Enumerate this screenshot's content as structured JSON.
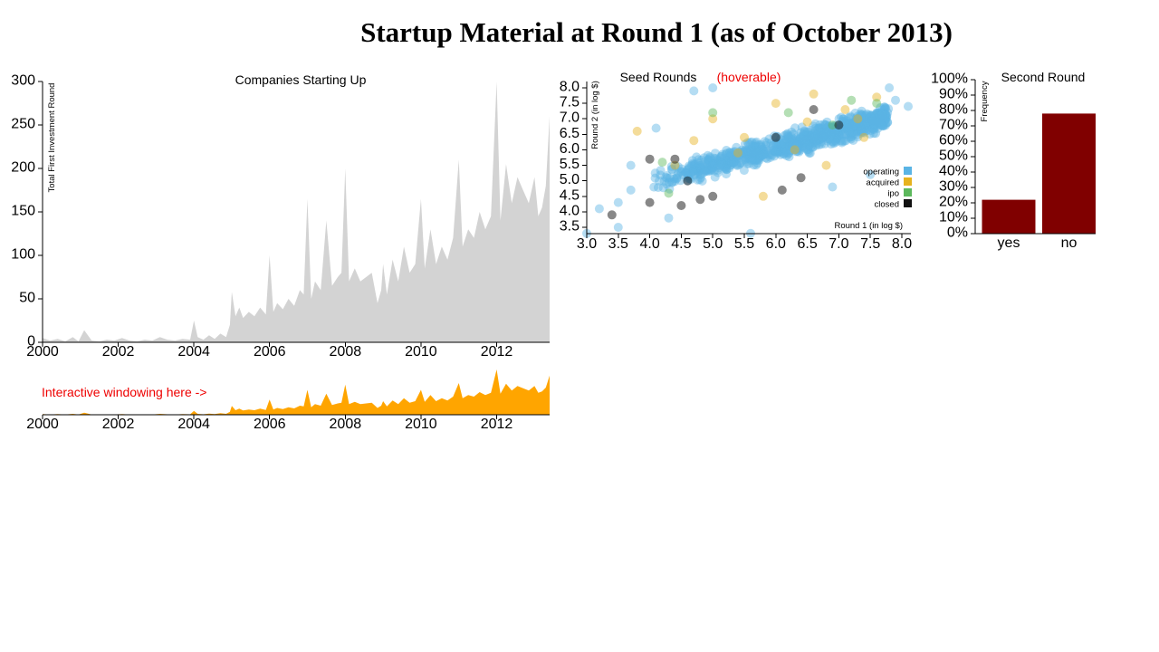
{
  "page_title": "Startup Material at Round 1 (as of October 2013)",
  "colors": {
    "area_main": "#d3d3d3",
    "area_context": "#ffa500",
    "bar": "#800000",
    "operating": "#5ab4e5",
    "acquired": "#e6b21e",
    "ipo": "#5cb85c",
    "closed": "#111111",
    "annotation": "#ee0000"
  },
  "chart_data": [
    {
      "type": "area",
      "title": "Companies Starting Up",
      "ylabel": "Total First Investment Round",
      "xlim": [
        2000,
        2013.4
      ],
      "ylim": [
        0,
        300
      ],
      "x_ticks": [
        "2000",
        "2002",
        "2004",
        "2006",
        "2008",
        "2010",
        "2012"
      ],
      "y_ticks": [
        "0",
        "50",
        "100",
        "150",
        "200",
        "250",
        "300"
      ],
      "x": [
        2000.0,
        2000.2,
        2000.4,
        2000.6,
        2000.8,
        2000.95,
        2001.1,
        2001.3,
        2001.5,
        2001.7,
        2001.9,
        2002.1,
        2002.3,
        2002.5,
        2002.7,
        2002.9,
        2003.1,
        2003.3,
        2003.5,
        2003.7,
        2003.9,
        2004.0,
        2004.1,
        2004.25,
        2004.4,
        2004.55,
        2004.7,
        2004.85,
        2004.95,
        2005.0,
        2005.1,
        2005.2,
        2005.3,
        2005.45,
        2005.6,
        2005.75,
        2005.9,
        2006.0,
        2006.1,
        2006.2,
        2006.35,
        2006.5,
        2006.65,
        2006.8,
        2006.9,
        2007.0,
        2007.1,
        2007.2,
        2007.35,
        2007.5,
        2007.65,
        2007.8,
        2007.9,
        2008.0,
        2008.1,
        2008.25,
        2008.4,
        2008.55,
        2008.7,
        2008.85,
        2008.95,
        2009.0,
        2009.1,
        2009.25,
        2009.4,
        2009.55,
        2009.7,
        2009.85,
        2010.0,
        2010.1,
        2010.25,
        2010.4,
        2010.55,
        2010.7,
        2010.85,
        2011.0,
        2011.1,
        2011.25,
        2011.4,
        2011.55,
        2011.7,
        2011.85,
        2012.0,
        2012.1,
        2012.25,
        2012.4,
        2012.55,
        2012.7,
        2012.85,
        2013.0,
        2013.1,
        2013.2,
        2013.3,
        2013.4
      ],
      "values": [
        5,
        2,
        4,
        1,
        6,
        1,
        14,
        2,
        1,
        3,
        2,
        5,
        2,
        1,
        3,
        2,
        6,
        3,
        2,
        4,
        3,
        25,
        6,
        3,
        8,
        4,
        10,
        6,
        20,
        58,
        30,
        40,
        28,
        35,
        30,
        40,
        32,
        100,
        35,
        45,
        38,
        50,
        42,
        60,
        55,
        165,
        50,
        70,
        60,
        140,
        65,
        75,
        80,
        200,
        70,
        85,
        70,
        75,
        80,
        45,
        60,
        90,
        55,
        95,
        70,
        110,
        80,
        90,
        165,
        85,
        130,
        90,
        110,
        95,
        120,
        210,
        110,
        130,
        120,
        150,
        130,
        145,
        300,
        140,
        205,
        160,
        190,
        175,
        160,
        190,
        145,
        155,
        180,
        260
      ]
    },
    {
      "type": "area",
      "title": "",
      "xlim": [
        2000,
        2013.4
      ],
      "ylim": [
        0,
        300
      ],
      "x_ticks": [
        "2000",
        "2002",
        "2004",
        "2006",
        "2008",
        "2010",
        "2012"
      ],
      "annotation": "Interactive windowing here ->"
    },
    {
      "type": "scatter",
      "title": "Seed Rounds",
      "hint": "(hoverable)",
      "xlabel": "Round 1 (in log $)",
      "ylabel": "Round 2 (in log $)",
      "xlim": [
        3.0,
        8.15
      ],
      "ylim": [
        3.3,
        8.2
      ],
      "x_ticks": [
        "3.0",
        "3.5",
        "4.0",
        "4.5",
        "5.0",
        "5.5",
        "6.0",
        "6.5",
        "7.0",
        "7.5",
        "8.0"
      ],
      "y_ticks": [
        "3.5",
        "4.0",
        "4.5",
        "5.0",
        "5.5",
        "6.0",
        "6.5",
        "7.0",
        "7.5",
        "8.0"
      ],
      "legend": [
        {
          "key": "operating",
          "label": "operating"
        },
        {
          "key": "acquired",
          "label": "acquired"
        },
        {
          "key": "ipo",
          "label": "ipo"
        },
        {
          "key": "closed",
          "label": "closed"
        }
      ],
      "legend_position": "bottom-right",
      "points": [
        [
          4.0,
          5.7,
          "closed"
        ],
        [
          4.4,
          5.7,
          "closed"
        ],
        [
          4.0,
          4.3,
          "closed"
        ],
        [
          3.4,
          3.9,
          "closed"
        ],
        [
          4.8,
          4.4,
          "closed"
        ],
        [
          4.6,
          5.0,
          "closed"
        ],
        [
          4.5,
          4.2,
          "closed"
        ],
        [
          5.0,
          4.5,
          "closed"
        ],
        [
          6.4,
          5.1,
          "closed"
        ],
        [
          6.1,
          4.7,
          "closed"
        ],
        [
          7.0,
          6.8,
          "closed"
        ],
        [
          6.6,
          7.3,
          "closed"
        ],
        [
          6.0,
          6.4,
          "closed"
        ],
        [
          3.8,
          6.6,
          "acquired"
        ],
        [
          4.4,
          5.5,
          "acquired"
        ],
        [
          5.5,
          6.4,
          "acquired"
        ],
        [
          6.6,
          7.8,
          "acquired"
        ],
        [
          7.6,
          7.7,
          "acquired"
        ],
        [
          7.1,
          7.3,
          "acquired"
        ],
        [
          6.3,
          6.0,
          "acquired"
        ],
        [
          5.0,
          7.0,
          "acquired"
        ],
        [
          6.8,
          5.5,
          "acquired"
        ],
        [
          5.8,
          4.5,
          "acquired"
        ],
        [
          4.7,
          6.3,
          "acquired"
        ],
        [
          7.3,
          7.0,
          "acquired"
        ],
        [
          6.0,
          7.5,
          "acquired"
        ],
        [
          6.5,
          6.9,
          "acquired"
        ],
        [
          7.4,
          6.4,
          "acquired"
        ],
        [
          5.4,
          5.9,
          "acquired"
        ],
        [
          4.3,
          4.6,
          "ipo"
        ],
        [
          5.0,
          7.2,
          "ipo"
        ],
        [
          7.2,
          7.6,
          "ipo"
        ],
        [
          6.9,
          6.8,
          "ipo"
        ],
        [
          4.2,
          5.6,
          "ipo"
        ],
        [
          6.2,
          7.2,
          "ipo"
        ],
        [
          7.6,
          7.5,
          "ipo"
        ],
        [
          3.2,
          4.1,
          "operating"
        ],
        [
          3.5,
          3.5,
          "operating"
        ],
        [
          3.7,
          5.5,
          "operating"
        ],
        [
          3.7,
          4.7,
          "operating"
        ],
        [
          3.5,
          4.3,
          "operating"
        ],
        [
          4.1,
          6.7,
          "operating"
        ],
        [
          4.7,
          7.9,
          "operating"
        ],
        [
          5.0,
          8.0,
          "operating"
        ],
        [
          7.8,
          8.0,
          "operating"
        ],
        [
          8.1,
          7.4,
          "operating"
        ],
        [
          7.9,
          7.6,
          "operating"
        ],
        [
          4.3,
          3.8,
          "operating"
        ],
        [
          5.6,
          3.3,
          "operating"
        ],
        [
          3.0,
          3.3,
          "operating"
        ],
        [
          6.9,
          4.8,
          "operating"
        ],
        [
          7.5,
          5.2,
          "operating"
        ]
      ]
    },
    {
      "type": "bar",
      "title": "Second Round",
      "ylabel": "Frequency",
      "categories": [
        "yes",
        "no"
      ],
      "values": [
        0.22,
        0.78
      ],
      "ylim": [
        0,
        1
      ],
      "y_ticks": [
        "0%",
        "10%",
        "20%",
        "30%",
        "40%",
        "50%",
        "60%",
        "70%",
        "80%",
        "90%",
        "100%"
      ]
    }
  ]
}
